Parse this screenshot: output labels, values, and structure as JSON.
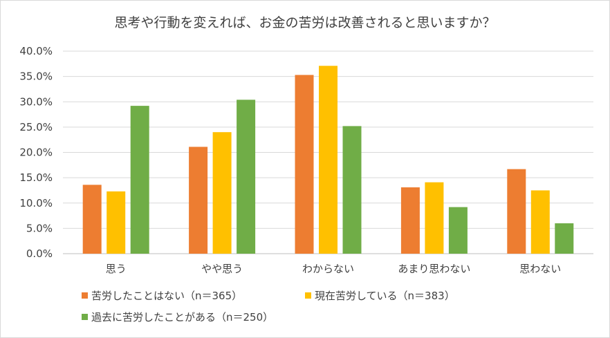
{
  "chart_data": {
    "type": "bar",
    "title": "思考や行動を変えれば、お金の苦労は改善されると思いますか？",
    "categories": [
      "思う",
      "やや思う",
      "わからない",
      "あまり思わない",
      "思わない"
    ],
    "series": [
      {
        "name": "苦労したことはない（n＝365）",
        "color": "#ED7D31",
        "values": [
          13.6,
          21.1,
          35.3,
          13.1,
          16.7
        ]
      },
      {
        "name": "現在苦労している（n＝383）",
        "color": "#FFC000",
        "values": [
          12.3,
          24.0,
          37.1,
          14.1,
          12.5
        ]
      },
      {
        "name": "過去に苦労したことがある（n＝250）",
        "color": "#70AD47",
        "values": [
          29.2,
          30.4,
          25.2,
          9.2,
          6.0
        ]
      }
    ],
    "y_ticks": [
      "0.0%",
      "5.0%",
      "10.0%",
      "15.0%",
      "20.0%",
      "25.0%",
      "30.0%",
      "35.0%",
      "40.0%"
    ],
    "ylim": [
      0,
      40
    ],
    "xlabel": "",
    "ylabel": "",
    "grid": true,
    "legend_position": "bottom-left"
  }
}
